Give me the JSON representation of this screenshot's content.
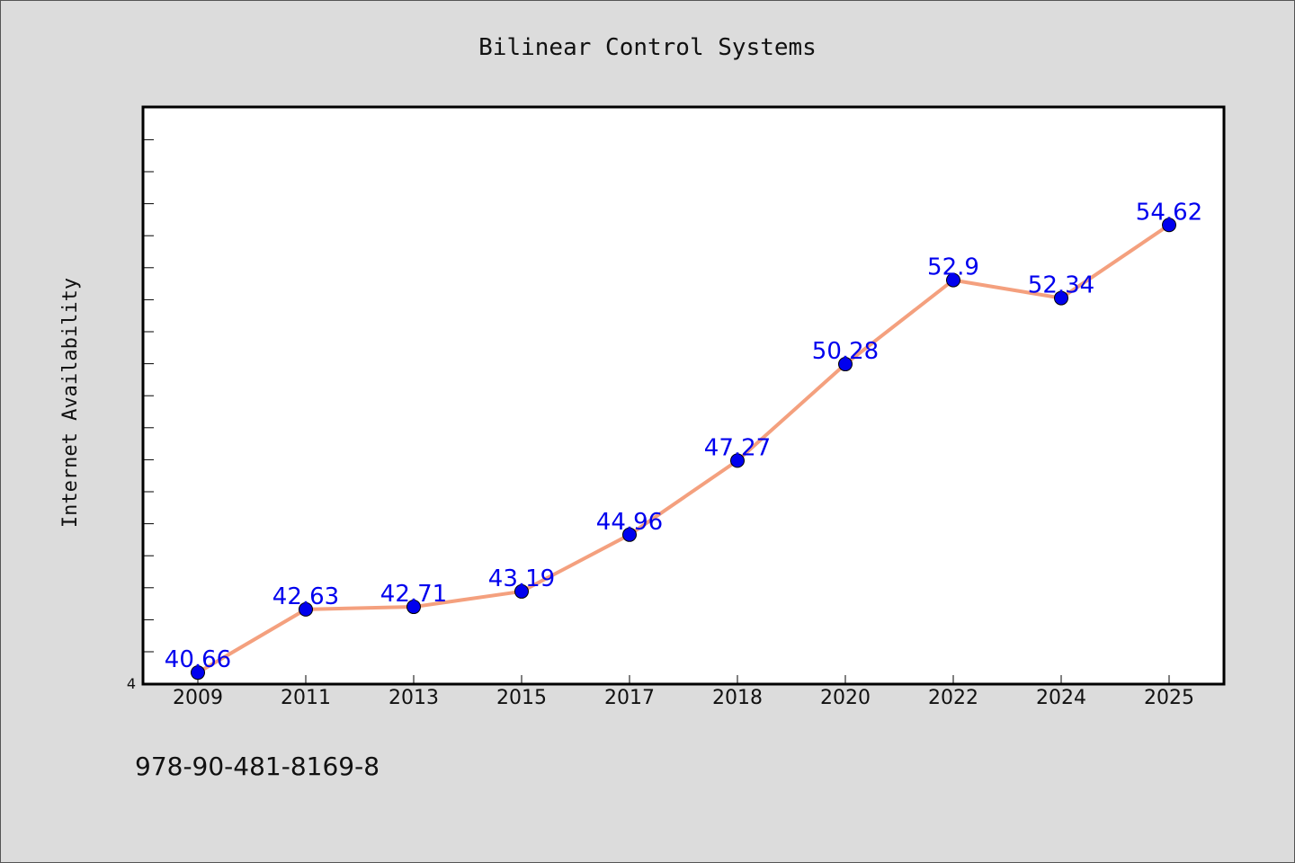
{
  "chart_data": {
    "type": "line",
    "title": "Bilinear Control Systems",
    "xlabel": "",
    "ylabel": "Internet Availability",
    "categories": [
      "2009",
      "2011",
      "2013",
      "2015",
      "2017",
      "2018",
      "2020",
      "2022",
      "2024",
      "2025"
    ],
    "series": [
      {
        "values": [
          40.66,
          42.63,
          42.71,
          43.19,
          44.96,
          47.27,
          50.28,
          52.9,
          52.34,
          54.62
        ],
        "labels": [
          "40.66",
          "42.63",
          "42.71",
          "43.19",
          "44.96",
          "47.27",
          "50.28",
          "52.9",
          "52.34",
          "54.62"
        ]
      }
    ],
    "y_tick_label": "4",
    "ylim": [
      40.3,
      58.3
    ],
    "grid": false,
    "line_color": "#f4a07e",
    "marker_color": "#0000ee",
    "label_color": "#0000ee"
  },
  "footer": {
    "isbn": "978-90-481-8169-8"
  }
}
